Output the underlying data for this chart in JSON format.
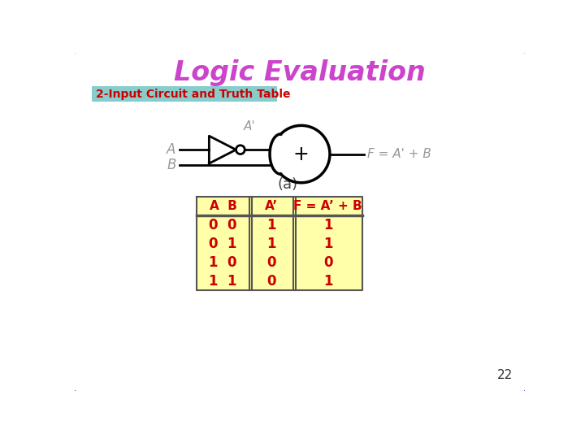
{
  "title": "Logic Evaluation",
  "title_color": "#cc44cc",
  "subtitle": "2-Input Circuit and Truth Table",
  "subtitle_color": "#cc0000",
  "subtitle_bg": "#88cccc",
  "background": "#ffffff",
  "border_color": "#3333aa",
  "table_headers": [
    "A  B",
    "A’",
    "F = A’ + B"
  ],
  "table_rows": [
    [
      "0  0",
      "1",
      "1"
    ],
    [
      "0  1",
      "1",
      "1"
    ],
    [
      "1  0",
      "0",
      "0"
    ],
    [
      "1  1",
      "0",
      "1"
    ]
  ],
  "table_bg": "#ffffaa",
  "table_header_color": "#cc0000",
  "table_data_color": "#cc0000",
  "circuit_color": "#000000",
  "circuit_label_color": "#999999",
  "page_number": "22",
  "caption": "(a)"
}
